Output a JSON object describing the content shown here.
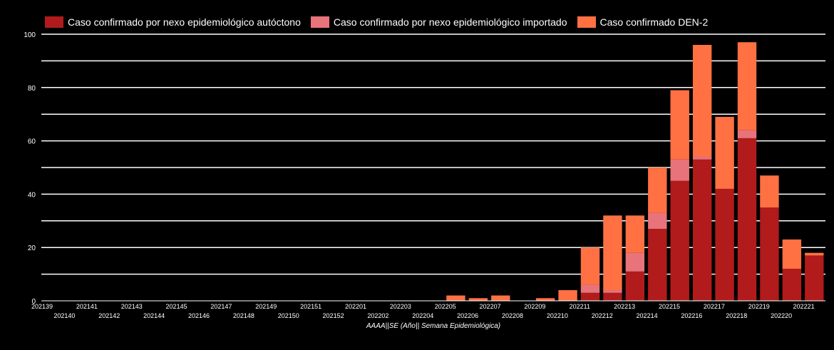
{
  "chart_data": {
    "type": "bar",
    "stacked": true,
    "xlabel": "AAAA||SE (Año|| Semana Epidemiológica)",
    "ylabel": "",
    "ylim": [
      0,
      100
    ],
    "yticks": [
      "0",
      "20",
      "40",
      "60",
      "80",
      "100"
    ],
    "grid": true,
    "legend_position": "top",
    "categories": [
      "202139",
      "202140",
      "202141",
      "202142",
      "202143",
      "202144",
      "202145",
      "202146",
      "202147",
      "202148",
      "202149",
      "202150",
      "202151",
      "202152",
      "202201",
      "202202",
      "202203",
      "202204",
      "202205",
      "202206",
      "202207",
      "202208",
      "202209",
      "202210",
      "202211",
      "202212",
      "202213",
      "202214",
      "202215",
      "202216",
      "202217",
      "202218",
      "202219",
      "202220",
      "202221"
    ],
    "series": [
      {
        "name": "Caso confirmado por nexo epidemiológico autóctono",
        "color": "#b11b1b",
        "values": [
          0,
          0,
          0,
          0,
          0,
          0,
          0,
          0,
          0,
          0,
          0,
          0,
          0,
          0,
          0,
          0,
          0,
          0,
          0,
          0,
          0,
          0,
          0,
          0,
          3,
          3,
          11,
          27,
          45,
          53,
          42,
          61,
          35,
          12,
          17
        ]
      },
      {
        "name": "Caso confirmado por nexo epidemiológico importado",
        "color": "#e8737a",
        "values": [
          0,
          0,
          0,
          0,
          0,
          0,
          0,
          0,
          0,
          0,
          0,
          0,
          0,
          0,
          0,
          0,
          0,
          0,
          0,
          0,
          0,
          0,
          0,
          0,
          3,
          1,
          7,
          6,
          8,
          1,
          0,
          3,
          0,
          0,
          0
        ]
      },
      {
        "name": "Caso confirmado DEN-2",
        "color": "#ff7043",
        "values": [
          0,
          0,
          0,
          0,
          0,
          0,
          0,
          0,
          0,
          0,
          0,
          0,
          0,
          0,
          0,
          0,
          0,
          0,
          2,
          1,
          2,
          0,
          1,
          4,
          14,
          28,
          14,
          17,
          26,
          42,
          27,
          33,
          12,
          11,
          1
        ]
      }
    ]
  }
}
